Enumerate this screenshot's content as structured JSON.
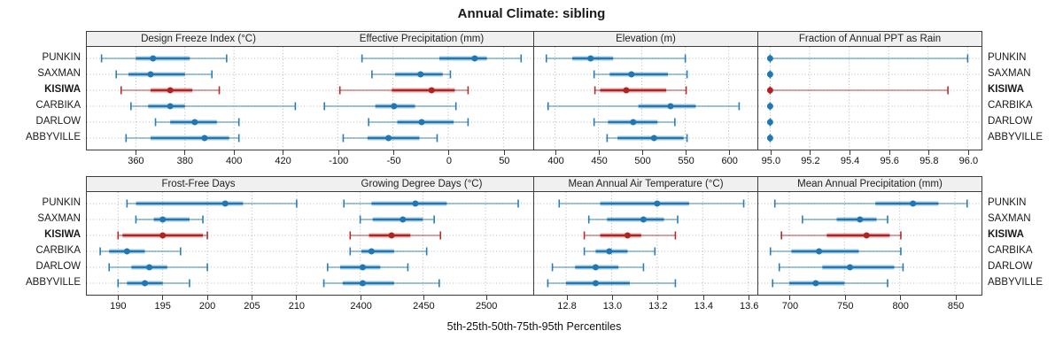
{
  "title": "Annual Climate: sibling",
  "xlabel": "5th-25th-50th-75th-95th Percentiles",
  "sites": [
    "PUNKIN",
    "SAXMAN",
    "KISIWA",
    "CARBIKA",
    "DARLOW",
    "ABBYVILLE"
  ],
  "highlight_site": "KISIWA",
  "colors": {
    "series": "#1f77b4",
    "highlight": "#b22222",
    "strip_bg": "#f0f0f0",
    "border": "#3c3c3c",
    "grid": "#b8b8b8"
  },
  "chart_data": {
    "type": "dot-whisker-trellis",
    "percentile_labels": [
      "5th",
      "25th",
      "50th",
      "75th",
      "95th"
    ],
    "layout": [
      [
        "dfi",
        "ep",
        "elev",
        "fppt"
      ],
      [
        "ffd",
        "gdd",
        "maat",
        "map"
      ]
    ],
    "panels": [
      {
        "id": "dfi",
        "title": "Design Freeze Index (°C)",
        "xlim": [
          340,
          431
        ],
        "tick_values": [
          360,
          380,
          400,
          420
        ],
        "tick_labels": [
          "360",
          "380",
          "400",
          "420"
        ],
        "data": {
          "PUNKIN": [
            346,
            360,
            367,
            382,
            397
          ],
          "SAXMAN": [
            352,
            357,
            366,
            380,
            391
          ],
          "KISIWA": [
            354,
            366,
            374,
            383,
            394
          ],
          "CARBIKA": [
            358,
            365,
            374,
            380,
            425
          ],
          "DARLOW": [
            368,
            374,
            384,
            393,
            402
          ],
          "ABBYVILLE": [
            356,
            366,
            388,
            398,
            402
          ]
        }
      },
      {
        "id": "ep",
        "title": "Effective Precipitation (mm)",
        "xlim": [
          -125,
          77
        ],
        "tick_values": [
          -100,
          -50,
          0,
          50
        ],
        "tick_labels": [
          "-100",
          "-50",
          "0",
          "50"
        ],
        "data": {
          "PUNKIN": [
            -78,
            -8,
            24,
            35,
            66
          ],
          "SAXMAN": [
            -69,
            -48,
            -25,
            -5,
            2
          ],
          "KISIWA": [
            -98,
            -51,
            -15,
            6,
            18
          ],
          "CARBIKA": [
            -112,
            -66,
            -49,
            -30,
            7
          ],
          "DARLOW": [
            -72,
            -46,
            -24,
            5,
            18
          ],
          "ABBYVILLE": [
            -95,
            -73,
            -54,
            -26,
            -10
          ]
        }
      },
      {
        "id": "elev",
        "title": "Elevation (m)",
        "xlim": [
          376,
          633
        ],
        "tick_values": [
          400,
          450,
          500,
          550,
          600
        ],
        "tick_labels": [
          "400",
          "450",
          "500",
          "550",
          "600"
        ],
        "data": {
          "PUNKIN": [
            390,
            420,
            441,
            467,
            550
          ],
          "SAXMAN": [
            445,
            463,
            488,
            530,
            552
          ],
          "KISIWA": [
            446,
            452,
            482,
            528,
            551
          ],
          "CARBIKA": [
            392,
            496,
            533,
            562,
            612
          ],
          "DARLOW": [
            445,
            461,
            490,
            518,
            538
          ],
          "ABBYVILLE": [
            460,
            472,
            514,
            548,
            552
          ]
        }
      },
      {
        "id": "fppt",
        "title": "Fraction of Annual PPT as Rain",
        "xlim": [
          94.94,
          96.07
        ],
        "tick_values": [
          95.0,
          95.2,
          95.4,
          95.6,
          95.8,
          96.0
        ],
        "tick_labels": [
          "95.0",
          "95.2",
          "95.4",
          "95.6",
          "95.8",
          "96.0"
        ],
        "data": {
          "PUNKIN": [
            95.0,
            95.0,
            95.0,
            95.0,
            96.0
          ],
          "SAXMAN": [
            95.0,
            95.0,
            95.0,
            95.0,
            95.0
          ],
          "KISIWA": [
            95.0,
            95.0,
            95.0,
            95.0,
            95.9
          ],
          "CARBIKA": [
            95.0,
            95.0,
            95.0,
            95.0,
            95.0
          ],
          "DARLOW": [
            95.0,
            95.0,
            95.0,
            95.0,
            95.0
          ],
          "ABBYVILLE": [
            95.0,
            95.0,
            95.0,
            95.0,
            95.0
          ]
        }
      },
      {
        "id": "ffd",
        "title": "Frost-Free Days",
        "xlim": [
          186.5,
          211.5
        ],
        "tick_values": [
          190,
          195,
          200,
          205,
          210
        ],
        "tick_labels": [
          "190",
          "195",
          "200",
          "205",
          "210"
        ],
        "data": {
          "PUNKIN": [
            191,
            192,
            202,
            204,
            210
          ],
          "SAXMAN": [
            192,
            194,
            195,
            198,
            199.5
          ],
          "KISIWA": [
            190,
            190.5,
            195,
            199.5,
            200
          ],
          "CARBIKA": [
            188,
            189,
            191,
            193,
            197
          ],
          "DARLOW": [
            189,
            191.5,
            193.5,
            195.5,
            200
          ],
          "ABBYVILLE": [
            190,
            191,
            193,
            195,
            198
          ]
        }
      },
      {
        "id": "gdd",
        "title": "Growing Degree Days (°C)",
        "xlim": [
          2360,
          2538
        ],
        "tick_values": [
          2400,
          2450,
          2500
        ],
        "tick_labels": [
          "2400",
          "2450",
          "2500"
        ],
        "data": {
          "PUNKIN": [
            2387,
            2409,
            2444,
            2469,
            2526
          ],
          "SAXMAN": [
            2400,
            2410,
            2434,
            2450,
            2459
          ],
          "KISIWA": [
            2392,
            2407,
            2425,
            2440,
            2464
          ],
          "CARBIKA": [
            2392,
            2401,
            2409,
            2427,
            2453
          ],
          "DARLOW": [
            2374,
            2384,
            2402,
            2416,
            2438
          ],
          "ABBYVILLE": [
            2371,
            2386,
            2402,
            2427,
            2463
          ]
        }
      },
      {
        "id": "maat",
        "title": "Mean Annual Air Temperature (°C)",
        "xlim": [
          12.66,
          13.64
        ],
        "tick_values": [
          12.8,
          13.0,
          13.2,
          13.4,
          13.6
        ],
        "tick_labels": [
          "12.8",
          "13.0",
          "13.2",
          "13.4",
          "13.6"
        ],
        "data": {
          "PUNKIN": [
            12.77,
            12.95,
            13.2,
            13.34,
            13.58
          ],
          "SAXMAN": [
            12.9,
            12.98,
            13.14,
            13.23,
            13.29
          ],
          "KISIWA": [
            12.88,
            12.95,
            13.07,
            13.13,
            13.28
          ],
          "CARBIKA": [
            12.88,
            12.93,
            12.99,
            13.07,
            13.19
          ],
          "DARLOW": [
            12.74,
            12.84,
            12.93,
            13.03,
            13.14
          ],
          "ABBYVILLE": [
            12.72,
            12.8,
            12.93,
            13.08,
            13.28
          ]
        }
      },
      {
        "id": "map",
        "title": "Mean Annual Precipitation (mm)",
        "xlim": [
          672,
          874
        ],
        "tick_values": [
          700,
          750,
          800,
          850
        ],
        "tick_labels": [
          "700",
          "750",
          "800",
          "850"
        ],
        "data": {
          "PUNKIN": [
            687,
            778,
            812,
            835,
            861
          ],
          "SAXMAN": [
            712,
            743,
            764,
            779,
            789
          ],
          "KISIWA": [
            693,
            734,
            770,
            791,
            801
          ],
          "CARBIKA": [
            683,
            702,
            727,
            763,
            801
          ],
          "DARLOW": [
            691,
            730,
            755,
            795,
            803
          ],
          "ABBYVILLE": [
            685,
            700,
            724,
            750,
            789
          ]
        }
      }
    ]
  }
}
